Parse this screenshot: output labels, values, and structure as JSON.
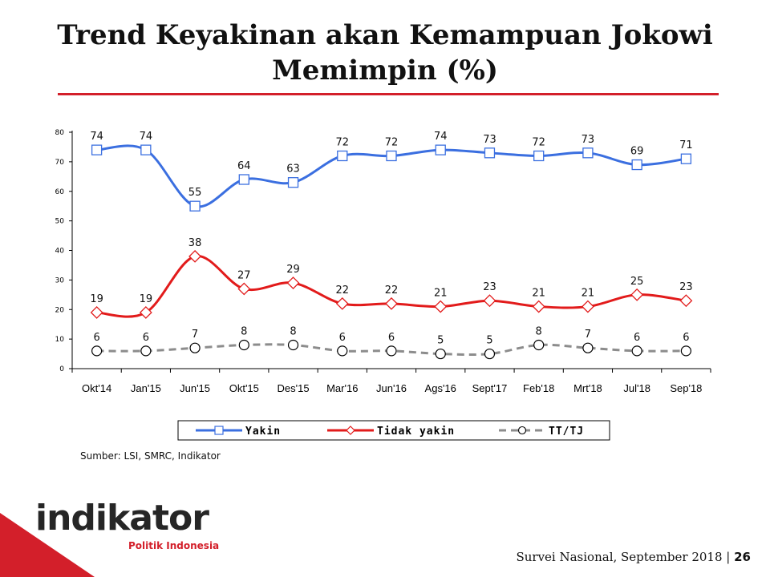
{
  "slide": {
    "title_line1": "Trend Keyakinan akan Kemampuan Jokowi",
    "title_line2": "Memimpin (%)",
    "source": "Sumber: LSI, SMRC, Indikator",
    "footer_text": "Survei Nasional, September 2018",
    "footer_sep": "|",
    "page_number": "26",
    "logo_text": "indikator",
    "logo_subtitle": "Politik Indonesia",
    "colors": {
      "accent": "#d31f2a",
      "yakin": "#3b6fe0",
      "tidak_yakin": "#e21b1b",
      "ttj": "#8c8c8c"
    }
  },
  "chart_data": {
    "type": "line",
    "categories": [
      "Okt'14",
      "Jan'15",
      "Jun'15",
      "Okt'15",
      "Des'15",
      "Mar'16",
      "Jun'16",
      "Ags'16",
      "Sept'17",
      "Feb'18",
      "Mrt'18",
      "Jul'18",
      "Sep'18"
    ],
    "series": [
      {
        "name": "Yakin",
        "values": [
          74,
          74,
          55,
          64,
          63,
          72,
          72,
          74,
          73,
          72,
          73,
          69,
          71
        ],
        "color": "#3b6fe0",
        "marker": "square",
        "dash": "solid"
      },
      {
        "name": "Tidak yakin",
        "values": [
          19,
          19,
          38,
          27,
          29,
          22,
          22,
          21,
          23,
          21,
          21,
          25,
          23
        ],
        "color": "#e21b1b",
        "marker": "diamond",
        "dash": "solid"
      },
      {
        "name": "TT/TJ",
        "values": [
          6,
          6,
          7,
          8,
          8,
          6,
          6,
          5,
          5,
          8,
          7,
          6,
          6
        ],
        "color": "#8c8c8c",
        "marker": "circle",
        "dash": "dashed"
      }
    ],
    "yticks": [
      0,
      10,
      20,
      30,
      40,
      50,
      60,
      70,
      80
    ],
    "ylim": [
      0,
      80
    ],
    "grid": false,
    "legend_position": "bottom"
  }
}
